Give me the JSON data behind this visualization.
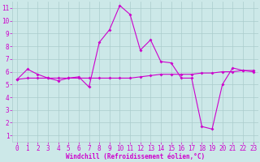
{
  "xlabel": "Windchill (Refroidissement éolien,°C)",
  "background_color": "#cce8e8",
  "grid_color": "#aacccc",
  "line_color": "#cc00cc",
  "xlim": [
    -0.5,
    23.5
  ],
  "ylim": [
    0.5,
    11.5
  ],
  "yticks": [
    1,
    2,
    3,
    4,
    5,
    6,
    7,
    8,
    9,
    10,
    11
  ],
  "xticks": [
    0,
    1,
    2,
    3,
    4,
    5,
    6,
    7,
    8,
    9,
    10,
    11,
    12,
    13,
    14,
    15,
    16,
    17,
    18,
    19,
    20,
    21,
    22,
    23
  ],
  "line1_x": [
    0,
    1,
    2,
    3,
    4,
    5,
    6,
    7,
    8,
    9,
    10,
    11,
    12,
    13,
    14,
    15,
    16,
    17,
    18,
    19,
    20,
    21,
    22,
    23
  ],
  "line1_y": [
    5.4,
    6.2,
    5.8,
    5.5,
    5.3,
    5.5,
    5.6,
    4.8,
    8.3,
    9.3,
    11.2,
    10.5,
    7.7,
    8.5,
    6.8,
    6.7,
    5.5,
    5.5,
    1.7,
    1.5,
    5.0,
    6.3,
    6.1,
    6.0
  ],
  "line2_x": [
    0,
    1,
    2,
    3,
    4,
    5,
    6,
    7,
    8,
    9,
    10,
    11,
    12,
    13,
    14,
    15,
    16,
    17,
    18,
    19,
    20,
    21,
    22,
    23
  ],
  "line2_y": [
    5.4,
    5.5,
    5.5,
    5.5,
    5.5,
    5.5,
    5.5,
    5.5,
    5.5,
    5.5,
    5.5,
    5.5,
    5.6,
    5.7,
    5.8,
    5.8,
    5.8,
    5.8,
    5.9,
    5.9,
    6.0,
    6.0,
    6.1,
    6.1
  ],
  "xlabel_fontsize": 5.5,
  "tick_fontsize": 5.5,
  "marker_size": 2.0,
  "line_width": 0.8
}
